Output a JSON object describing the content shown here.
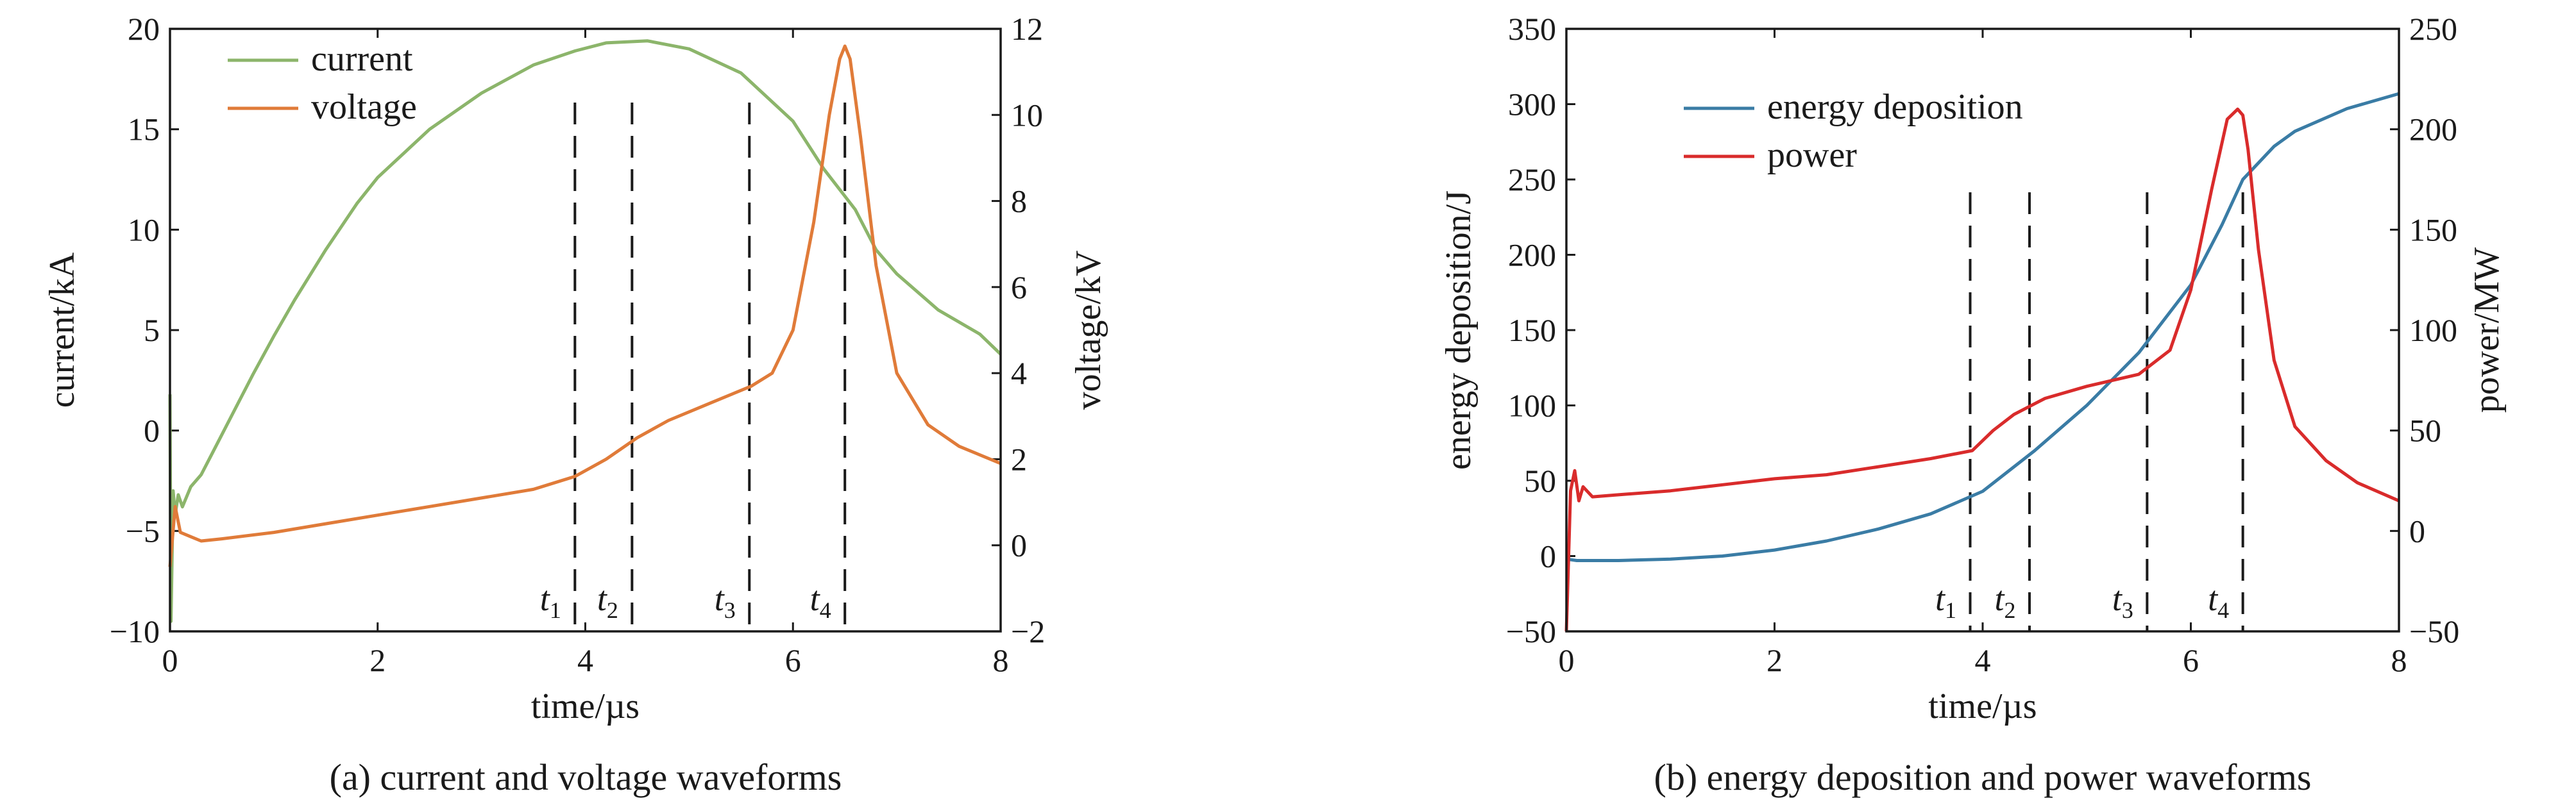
{
  "chart_data": [
    {
      "type": "line",
      "caption": "(a) current and voltage waveforms",
      "xlabel": "time/µs",
      "ylabel": "current/kA",
      "y2label": "voltage/kV",
      "xlim": [
        0,
        8
      ],
      "ylim": [
        -10,
        20
      ],
      "y2lim": [
        -2,
        12
      ],
      "xticks": [
        "0",
        "2",
        "4",
        "6",
        "8"
      ],
      "yticks": [
        "−10",
        "−5",
        "0",
        "5",
        "10",
        "15",
        "20"
      ],
      "y2ticks": [
        "−2",
        "0",
        "2",
        "4",
        "6",
        "8",
        "10",
        "12"
      ],
      "legend_position": "top-left",
      "grid": false,
      "series": [
        {
          "name": "current",
          "axis": "left",
          "color": "#8cb56b",
          "x": [
            0,
            0.01,
            0.03,
            0.05,
            0.08,
            0.12,
            0.2,
            0.3,
            0.4,
            0.6,
            0.8,
            1.0,
            1.2,
            1.5,
            1.8,
            2.0,
            2.5,
            3.0,
            3.5,
            3.9,
            4.2,
            4.6,
            5.0,
            5.5,
            6.0,
            6.3,
            6.6,
            6.8,
            7.0,
            7.4,
            7.8,
            8.0
          ],
          "values": [
            1.8,
            -9.5,
            -3.0,
            -4.2,
            -3.2,
            -3.8,
            -2.8,
            -2.2,
            -1.2,
            0.8,
            2.8,
            4.7,
            6.5,
            9.0,
            11.3,
            12.6,
            15.0,
            16.8,
            18.2,
            18.9,
            19.3,
            19.4,
            19.0,
            17.8,
            15.4,
            13.0,
            11.0,
            9.0,
            7.8,
            6.0,
            4.8,
            3.8
          ]
        },
        {
          "name": "voltage",
          "axis": "right",
          "color": "#e07b39",
          "x": [
            0,
            0.05,
            0.1,
            0.2,
            0.3,
            0.5,
            1.0,
            1.5,
            2.0,
            2.5,
            3.0,
            3.5,
            3.9,
            4.2,
            4.5,
            4.8,
            5.2,
            5.6,
            5.8,
            6.0,
            6.2,
            6.35,
            6.45,
            6.5,
            6.55,
            6.65,
            6.8,
            7.0,
            7.3,
            7.6,
            8.0
          ],
          "values": [
            -0.5,
            0.9,
            0.3,
            0.2,
            0.1,
            0.15,
            0.3,
            0.5,
            0.7,
            0.9,
            1.1,
            1.3,
            1.6,
            2.0,
            2.5,
            2.9,
            3.3,
            3.7,
            4.0,
            5.0,
            7.5,
            10.0,
            11.3,
            11.6,
            11.3,
            9.5,
            6.5,
            4.0,
            2.8,
            2.3,
            1.9
          ]
        }
      ],
      "markers": [
        {
          "label": "t",
          "sub": "1",
          "x": 3.9
        },
        {
          "label": "t",
          "sub": "2",
          "x": 4.45
        },
        {
          "label": "t",
          "sub": "3",
          "x": 5.58
        },
        {
          "label": "t",
          "sub": "4",
          "x": 6.5
        }
      ]
    },
    {
      "type": "line",
      "caption": "(b) energy deposition and power waveforms",
      "xlabel": "time/µs",
      "ylabel": "energy deposition/J",
      "y2label": "power/MW",
      "xlim": [
        0,
        8
      ],
      "ylim": [
        -50,
        350
      ],
      "y2lim": [
        -50,
        250
      ],
      "xticks": [
        "0",
        "2",
        "4",
        "6",
        "8"
      ],
      "yticks": [
        "−50",
        "0",
        "50",
        "100",
        "150",
        "200",
        "250",
        "300",
        "350"
      ],
      "y2ticks": [
        "−50",
        "0",
        "50",
        "100",
        "150",
        "200",
        "250"
      ],
      "legend_position": "top-left",
      "grid": false,
      "series": [
        {
          "name": "energy deposition",
          "axis": "left",
          "color": "#3a7ca5",
          "x": [
            0,
            0.1,
            0.5,
            1.0,
            1.5,
            2.0,
            2.5,
            3.0,
            3.5,
            4.0,
            4.5,
            5.0,
            5.5,
            6.0,
            6.3,
            6.5,
            6.8,
            7.0,
            7.5,
            8.0
          ],
          "values": [
            -2,
            -3,
            -3,
            -2,
            0,
            4,
            10,
            18,
            28,
            43,
            70,
            100,
            135,
            180,
            220,
            250,
            272,
            282,
            297,
            307
          ]
        },
        {
          "name": "power",
          "axis": "right",
          "color": "#d92b2b",
          "x": [
            0,
            0.04,
            0.08,
            0.12,
            0.16,
            0.25,
            0.5,
            1.0,
            1.5,
            2.0,
            2.5,
            3.0,
            3.5,
            3.9,
            4.1,
            4.3,
            4.6,
            5.0,
            5.5,
            5.8,
            6.0,
            6.2,
            6.35,
            6.45,
            6.5,
            6.55,
            6.65,
            6.8,
            7.0,
            7.3,
            7.6,
            8.0
          ],
          "values": [
            -50,
            20,
            30,
            15,
            22,
            17,
            18,
            20,
            23,
            26,
            28,
            32,
            36,
            40,
            50,
            58,
            66,
            72,
            78,
            90,
            120,
            170,
            205,
            210,
            207,
            190,
            140,
            85,
            52,
            35,
            24,
            15
          ]
        }
      ],
      "markers": [
        {
          "label": "t",
          "sub": "1",
          "x": 3.88
        },
        {
          "label": "t",
          "sub": "2",
          "x": 4.45
        },
        {
          "label": "t",
          "sub": "3",
          "x": 5.58
        },
        {
          "label": "t",
          "sub": "4",
          "x": 6.5
        }
      ]
    }
  ]
}
